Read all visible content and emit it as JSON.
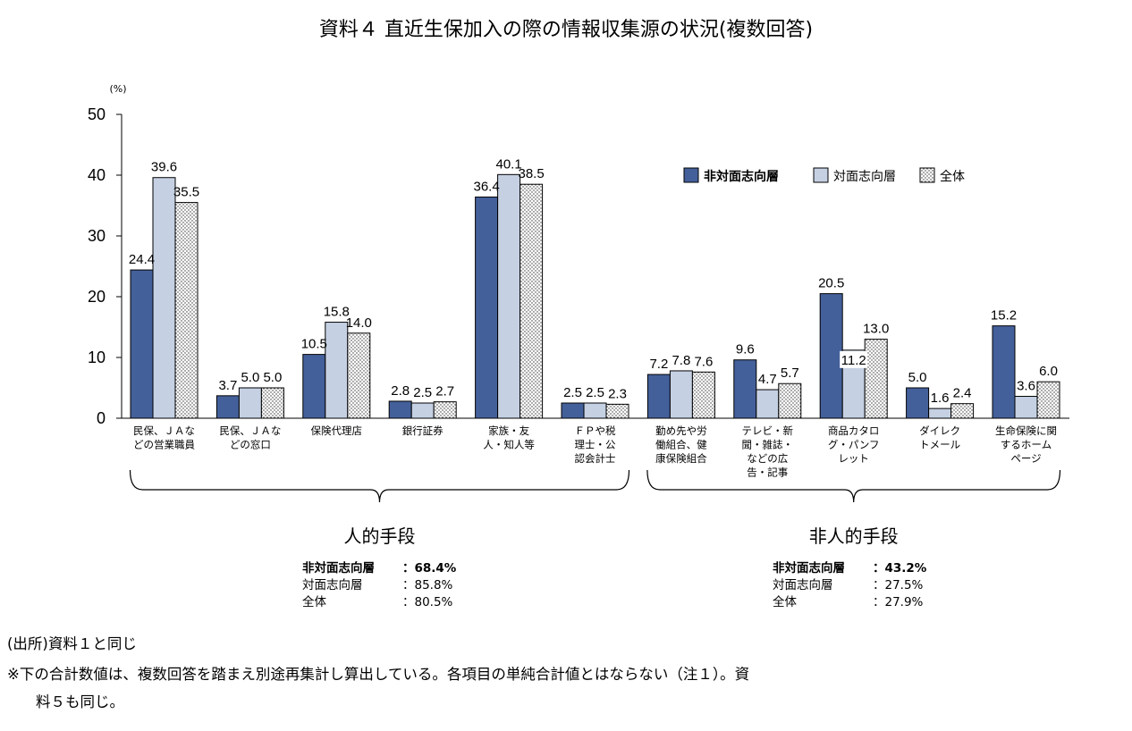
{
  "chart_data": {
    "type": "bar",
    "title": "資料４ 直近生保加入の際の情報収集源の状況(複数回答)",
    "ylabel": "(%)",
    "ylim": [
      0,
      50
    ],
    "yticks": [
      0,
      10,
      20,
      30,
      40,
      50
    ],
    "categories": [
      [
        "民保、ＪＡな",
        "どの営業職員"
      ],
      [
        "民保、ＪＡな",
        "どの窓口"
      ],
      [
        "保険代理店"
      ],
      [
        "銀行証券"
      ],
      [
        "家族・友",
        "人・知人等"
      ],
      [
        "ＦＰや税",
        "理士・公",
        "認会計士"
      ],
      [
        "勤め先や労",
        "働組合、健",
        "康保険組合"
      ],
      [
        "テレビ・新",
        "聞・雑誌・",
        "などの広",
        "告・記事"
      ],
      [
        "商品カタロ",
        "グ・パンフ",
        "レット"
      ],
      [
        "ダイレク",
        "トメール"
      ],
      [
        "生命保険に関",
        "するホーム",
        "ページ"
      ]
    ],
    "series": [
      {
        "name": "非対面志向層",
        "color": "#44609a",
        "values": [
          24.4,
          3.7,
          10.5,
          2.8,
          36.4,
          2.5,
          7.2,
          9.6,
          20.5,
          5.0,
          15.2
        ],
        "labels": [
          "24.4",
          "3.7",
          "10.5",
          "2.8",
          "36.4",
          "2.5",
          "7.2",
          "9.6",
          "20.5",
          "5.0",
          "15.2"
        ]
      },
      {
        "name": "対面志向層",
        "color": "#c5d0e3",
        "values": [
          39.6,
          5.0,
          15.8,
          2.5,
          40.1,
          2.5,
          7.8,
          4.7,
          11.2,
          1.6,
          3.6
        ],
        "labels": [
          "39.6",
          "5.0",
          "15.8",
          "2.5",
          "40.1",
          "2.5",
          "7.8",
          "4.7",
          "11.2",
          "1.6",
          "3.6"
        ]
      },
      {
        "name": "全体",
        "color": "#ffffff",
        "values": [
          35.5,
          5.0,
          14.0,
          2.7,
          38.5,
          2.3,
          7.6,
          5.7,
          13.0,
          2.4,
          6.0
        ],
        "labels": [
          "35.5",
          "5.0",
          "14.0",
          "2.7",
          "38.5",
          "2.3",
          "7.6",
          "5.7",
          "13.0",
          "2.4",
          "6.0"
        ]
      }
    ],
    "legend_position": "top-right",
    "groups": [
      {
        "name": "人的手段",
        "first": 0,
        "last": 5,
        "summary": [
          {
            "label": "非対面志向層",
            "value": "：68.4%",
            "bold": true
          },
          {
            "label": "対面志向層",
            "value": "：85.8%",
            "bold": false
          },
          {
            "label": "全体",
            "value": "：80.5%",
            "bold": false
          }
        ]
      },
      {
        "name": "非人的手段",
        "first": 6,
        "last": 10,
        "summary": [
          {
            "label": "非対面志向層",
            "value": "：43.2%",
            "bold": true
          },
          {
            "label": "対面志向層",
            "value": "：27.5%",
            "bold": false
          },
          {
            "label": "全体",
            "value": "：27.9%",
            "bold": false
          }
        ]
      }
    ]
  },
  "notes": {
    "source": "(出所)資料１と同じ",
    "line1": "※下の合計数値は、複数回答を踏まえ別途再集計し算出している。各項目の単純合計値とはならない（注１）。資",
    "line2": "料５も同じ。"
  }
}
